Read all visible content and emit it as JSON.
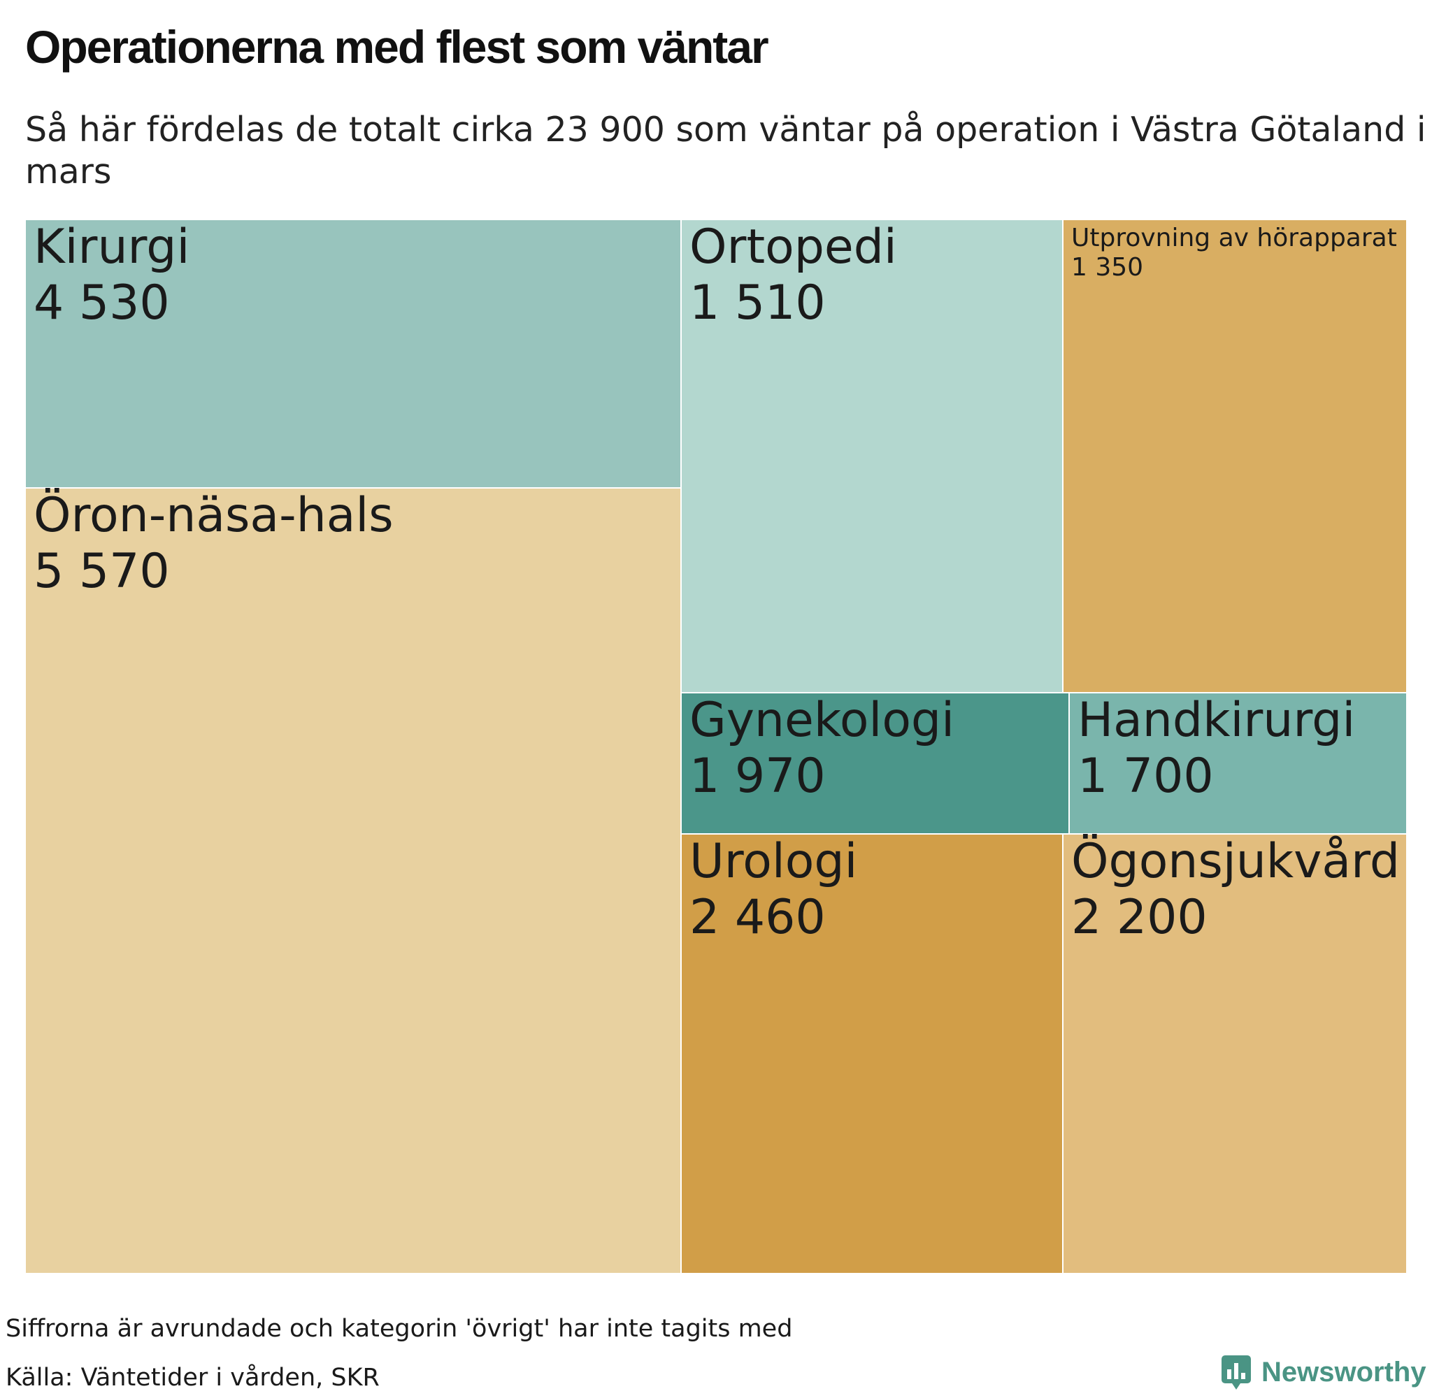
{
  "title": "Operationerna med flest som väntar",
  "subtitle": "Så här fördelas de totalt cirka 23 900 som väntar på operation i Västra Götaland i mars",
  "note": "Siffrorna är avrundade och kategorin 'övrigt' har inte tagits med",
  "source": "Källa: Väntetider i vården, SKR",
  "brand": {
    "name": "Newsworthy",
    "icon": "bar-chart-logo-icon",
    "color": "#4a9484"
  },
  "chart_data": {
    "type": "treemap",
    "title": "Operationerna med flest som väntar",
    "subtitle": "Så här fördelas de totalt cirka 23 900 som väntar på operation i Västra Götaland i mars",
    "items": [
      {
        "name": "Kirurgi",
        "value": 4530,
        "label": "4 530",
        "color": "#98c4bd"
      },
      {
        "name": "Öron-näsa-hals",
        "value": 5570,
        "label": "5 570",
        "color": "#e8d1a0"
      },
      {
        "name": "Ortopedi",
        "value": 1510,
        "label": "1 510",
        "color": "#b3d7cf"
      },
      {
        "name": "Utprovning av hörapparat",
        "value": 1350,
        "label": "1 350",
        "color": "#d9ae62"
      },
      {
        "name": "Gynekologi",
        "value": 1970,
        "label": "1 970",
        "color": "#4b968a"
      },
      {
        "name": "Handkirurgi",
        "value": 1700,
        "label": "1 700",
        "color": "#7ab5ac"
      },
      {
        "name": "Urologi",
        "value": 2460,
        "label": "2 460",
        "color": "#d19e48"
      },
      {
        "name": "Ögonsjukvård",
        "value": 2200,
        "label": "2 200",
        "color": "#e2bd7e"
      }
    ]
  }
}
